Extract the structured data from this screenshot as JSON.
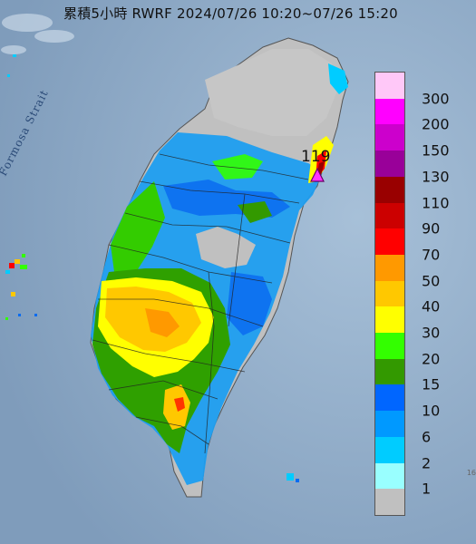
{
  "title": "累積5小時 RWRF 2024/07/26 10:20~07/26 15:20",
  "strait_label": "Formosa Strait",
  "peak_value": "119",
  "corner_tick": "16",
  "legend": {
    "items": [
      {
        "label": "300",
        "color": "#ffc8f8"
      },
      {
        "label": "200",
        "color": "#ff00ff"
      },
      {
        "label": "150",
        "color": "#cc00cc"
      },
      {
        "label": "130",
        "color": "#990099"
      },
      {
        "label": "110",
        "color": "#990000"
      },
      {
        "label": "90",
        "color": "#cc0000"
      },
      {
        "label": "70",
        "color": "#ff0000"
      },
      {
        "label": "50",
        "color": "#ff9900"
      },
      {
        "label": "40",
        "color": "#ffc800"
      },
      {
        "label": "30",
        "color": "#ffff00"
      },
      {
        "label": "20",
        "color": "#33ff00"
      },
      {
        "label": "15",
        "color": "#339900"
      },
      {
        "label": "10",
        "color": "#0066ff"
      },
      {
        "label": "6",
        "color": "#0099ff"
      },
      {
        "label": "2",
        "color": "#00ccff"
      },
      {
        "label": "1",
        "color": "#99ffff"
      },
      {
        "label": "",
        "color": "#c0c0c0"
      }
    ]
  }
}
